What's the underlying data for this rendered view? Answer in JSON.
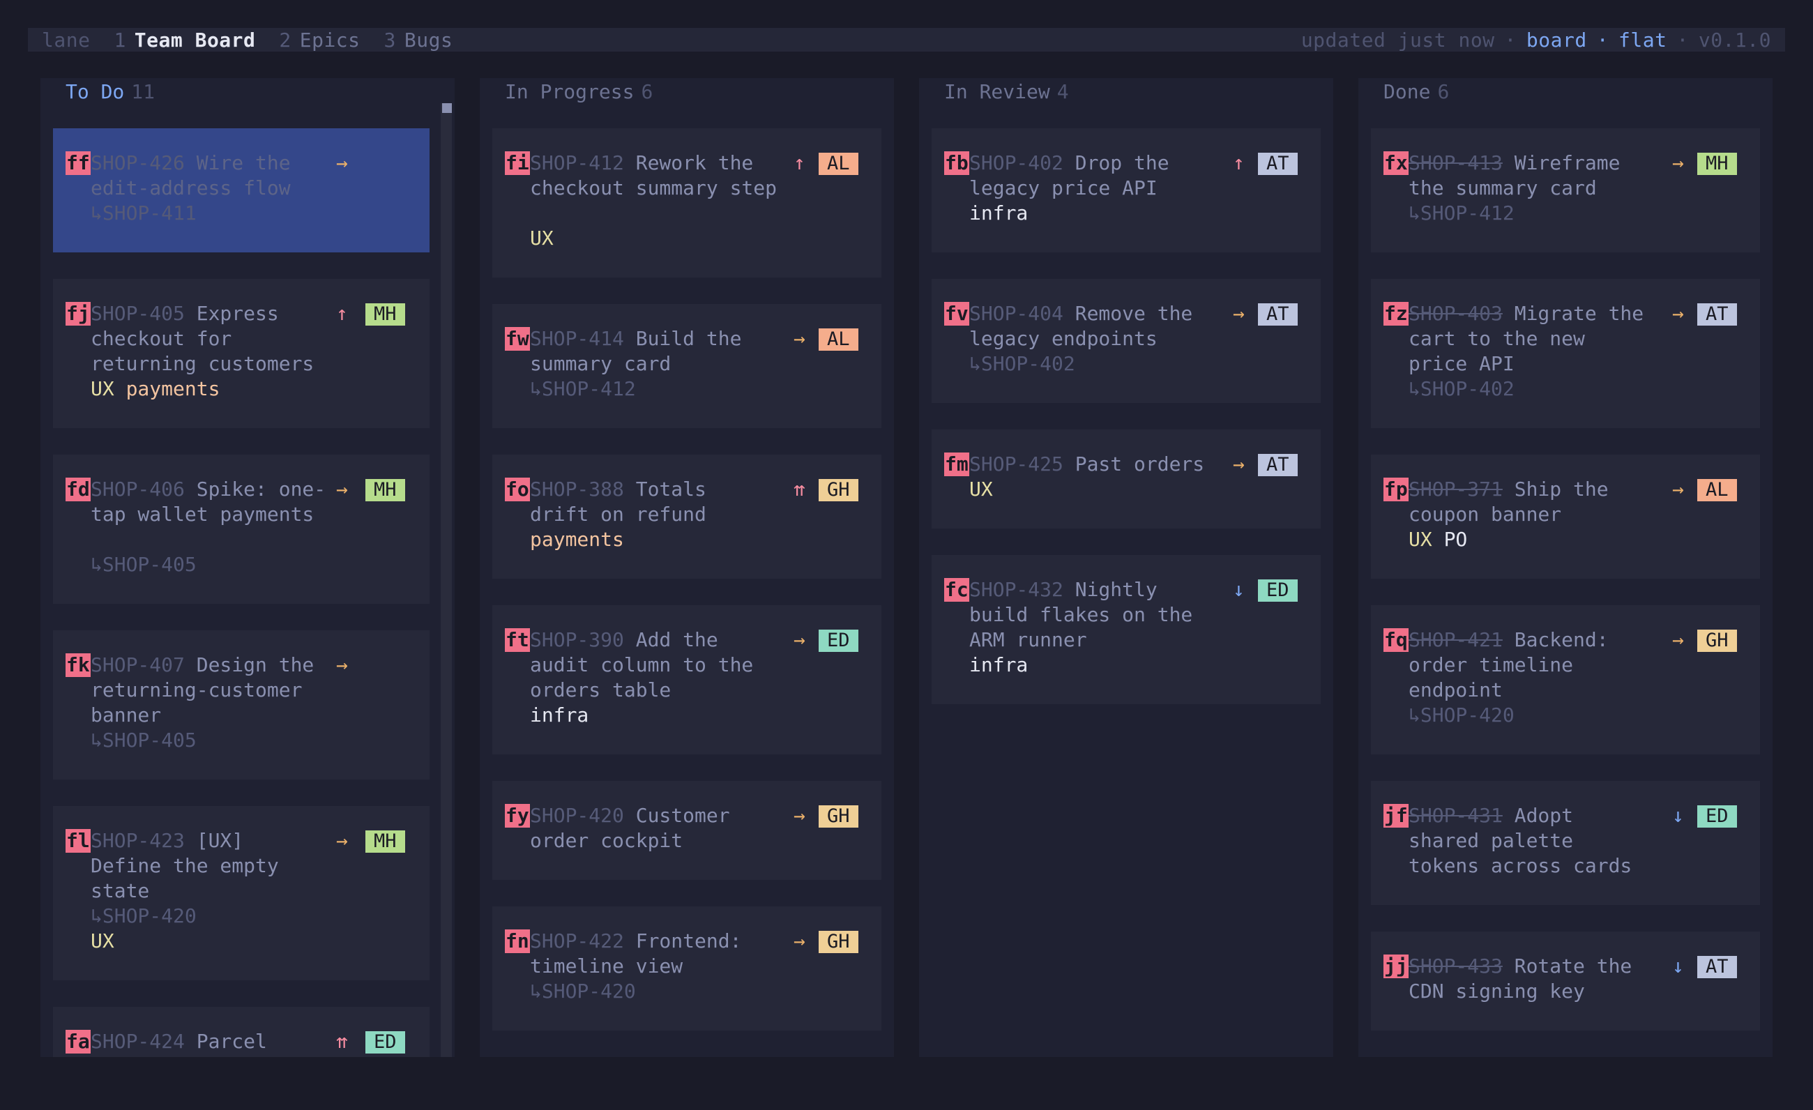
{
  "topbar": {
    "lane_label": "lane",
    "tabs": [
      {
        "num": "1",
        "label": "Team Board"
      },
      {
        "num": "2",
        "label": "Epics"
      },
      {
        "num": "3",
        "label": "Bugs"
      }
    ],
    "status": "updated just now",
    "dot": "·",
    "mode_board": "board",
    "mode_flat": "flat",
    "version": "v0.1.0"
  },
  "columns": [
    {
      "title": "To Do",
      "count": "11"
    },
    {
      "title": "In Progress",
      "count": "6"
    },
    {
      "title": "In Review",
      "count": "4"
    },
    {
      "title": "Done",
      "count": "6"
    }
  ],
  "cards": {
    "todo": [
      {
        "hint": "ff",
        "id": "SHOP-426",
        "title1": "Wire the",
        "title2": "edit-address flow",
        "prio": "→",
        "parent": "↳SHOP-411"
      },
      {
        "hint": "fj",
        "id": "SHOP-405",
        "title1": "Express",
        "title2": "checkout for",
        "title3": "returning customers",
        "prio": "↑",
        "badge": "MH",
        "tag1": "UX",
        "tag2": "payments"
      },
      {
        "hint": "fd",
        "id": "SHOP-406",
        "title1": "Spike: one-",
        "title2": "tap wallet payments",
        "prio": "→",
        "badge": "MH",
        "parent": "↳SHOP-405"
      },
      {
        "hint": "fk",
        "id": "SHOP-407",
        "title1": "Design the",
        "title2": "returning-customer",
        "title3": "banner",
        "prio": "→",
        "parent": "↳SHOP-405"
      },
      {
        "hint": "fl",
        "id": "SHOP-423",
        "title1": "[UX]",
        "title2": "Define the empty",
        "title3": "state",
        "prio": "→",
        "badge": "MH",
        "parent": "↳SHOP-420",
        "tag1": "UX"
      },
      {
        "hint": "fa",
        "id": "SHOP-424",
        "title1": "Parcel",
        "prio": "⇈",
        "badge": "ED"
      }
    ],
    "progress": [
      {
        "hint": "fi",
        "id": "SHOP-412",
        "title1": "Rework the",
        "title2": "checkout summary step",
        "prio": "↑",
        "badge": "AL",
        "tag1": "UX"
      },
      {
        "hint": "fw",
        "id": "SHOP-414",
        "title1": "Build the",
        "title2": "summary card",
        "prio": "→",
        "badge": "AL",
        "parent": "↳SHOP-412"
      },
      {
        "hint": "fo",
        "id": "SHOP-388",
        "title1": "Totals",
        "title2": "drift on refund",
        "prio": "⇈",
        "badge": "GH",
        "tag1": "payments"
      },
      {
        "hint": "ft",
        "id": "SHOP-390",
        "title1": "Add the",
        "title2": "audit column to the",
        "title3": "orders table",
        "prio": "→",
        "badge": "ED",
        "tag1": "infra"
      },
      {
        "hint": "fy",
        "id": "SHOP-420",
        "title1": "Customer",
        "title2": "order cockpit",
        "prio": "→",
        "badge": "GH"
      },
      {
        "hint": "fn",
        "id": "SHOP-422",
        "title1": "Frontend:",
        "title2": "timeline view",
        "prio": "→",
        "badge": "GH",
        "parent": "↳SHOP-420"
      }
    ],
    "review": [
      {
        "hint": "fb",
        "id": "SHOP-402",
        "title1": "Drop the",
        "title2": "legacy price API",
        "prio": "↑",
        "badge": "AT",
        "tag1": "infra"
      },
      {
        "hint": "fv",
        "id": "SHOP-404",
        "title1": "Remove the",
        "title2": "legacy endpoints",
        "prio": "→",
        "badge": "AT",
        "parent": "↳SHOP-402"
      },
      {
        "hint": "fm",
        "id": "SHOP-425",
        "title1": "Past orders",
        "prio": "→",
        "badge": "AT",
        "tag1": "UX"
      },
      {
        "hint": "fc",
        "id": "SHOP-432",
        "title1": "Nightly",
        "title2": "build flakes on the",
        "title3": "ARM runner",
        "prio": "↓",
        "badge": "ED",
        "tag1": "infra"
      }
    ],
    "done": [
      {
        "hint": "fx",
        "id": "SHOP-413",
        "title1": "Wireframe",
        "title2": "the summary card",
        "prio": "→",
        "badge": "MH",
        "parent": "↳SHOP-412"
      },
      {
        "hint": "fz",
        "id": "SHOP-403",
        "title1": "Migrate the",
        "title2": "cart to the new",
        "title3": "price API",
        "prio": "→",
        "badge": "AT",
        "parent": "↳SHOP-402"
      },
      {
        "hint": "fp",
        "id": "SHOP-371",
        "title1": "Ship the",
        "title2": "coupon banner",
        "prio": "→",
        "badge": "AL",
        "tag1": "UX",
        "tag2": "PO"
      },
      {
        "hint": "fq",
        "id": "SHOP-421",
        "title1": "Backend:",
        "title2": "order timeline",
        "title3": "endpoint",
        "prio": "→",
        "badge": "GH",
        "parent": "↳SHOP-420"
      },
      {
        "hint": "jf",
        "id": "SHOP-431",
        "title1": "Adopt",
        "title2": "shared palette",
        "title3": "tokens across cards",
        "prio": "↓",
        "badge": "ED"
      },
      {
        "hint": "jj",
        "id": "SHOP-433",
        "title1": "Rotate the",
        "title2": "CDN signing key",
        "prio": "↓",
        "badge": "AT"
      }
    ]
  },
  "badge_colors": {
    "MH": "#b6dc8c",
    "AL": "#f5ad8c",
    "GH": "#efcf96",
    "ED": "#8ed9c2",
    "AT": "#bcc4de"
  },
  "colors": {
    "accent": "#7da7f2",
    "hint": "#f07089",
    "selected": "#34478a"
  }
}
